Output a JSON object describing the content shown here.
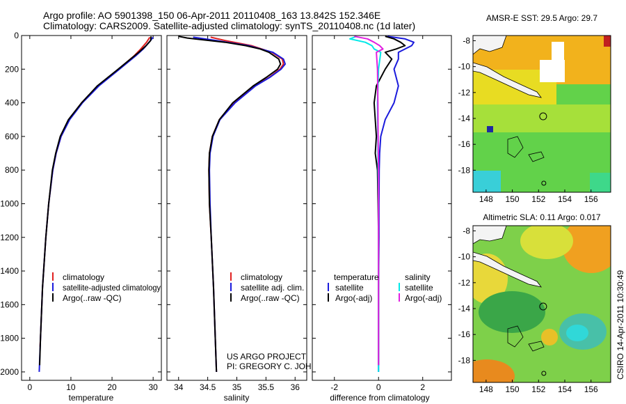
{
  "header": {
    "line1": "Argo profile: AO 5901398_150 06-Apr-2011 20110408_163 13.842S 152.346E",
    "line2": "Climatology: CARS2009. Satellite-adjusted climatology: synTS_20110408.nc (1d later)"
  },
  "colors": {
    "climatology": "#e02020",
    "satellite": "#1a1adc",
    "argo": "#000000",
    "sal_satellite": "#00e8e8",
    "sal_argo": "#e020e0"
  },
  "credit": {
    "line1": "US ARGO PROJECT",
    "line2": "PI: GREGORY C. JOHNSON"
  },
  "side_label": "CSIRO 14-Apr-2011 10:30:49",
  "chart_data": [
    {
      "id": "temperature",
      "type": "line",
      "xlabel": "temperature",
      "xlim": [
        -2,
        32
      ],
      "ylim": [
        0,
        2050
      ],
      "y_inverted": true,
      "xticks": [
        "0",
        "10",
        "20",
        "30"
      ],
      "xtick_values": [
        0,
        10,
        20,
        30
      ],
      "yticks": [
        "0",
        "200",
        "400",
        "600",
        "800",
        "1000",
        "1200",
        "1400",
        "1600",
        "1800",
        "2000"
      ],
      "ytick_values": [
        0,
        200,
        400,
        600,
        800,
        1000,
        1200,
        1400,
        1600,
        1800,
        2000
      ],
      "legend": [
        "climatology",
        "satellite-adjusted climatology",
        "Argo(..raw -QC)"
      ],
      "series": [
        {
          "name": "climatology",
          "color": "#e02020",
          "depth": [
            10,
            40,
            80,
            120,
            200,
            300,
            400,
            500,
            600,
            700,
            800,
            1000,
            1200,
            1500,
            1800,
            1850
          ],
          "values": [
            29.2,
            28.4,
            27.0,
            25.4,
            21.6,
            16.6,
            12.6,
            9.6,
            7.6,
            6.4,
            5.6,
            4.6,
            3.9,
            3.1,
            2.6,
            2.5
          ]
        },
        {
          "name": "satellite-adjusted climatology",
          "color": "#1a1adc",
          "depth": [
            10,
            40,
            80,
            120,
            200,
            300,
            400,
            500,
            600,
            700,
            800,
            1000,
            1200,
            1500,
            1800,
            2000
          ],
          "values": [
            30.0,
            29.0,
            27.6,
            25.8,
            21.8,
            16.8,
            12.8,
            9.7,
            7.6,
            6.4,
            5.6,
            4.6,
            3.9,
            3.1,
            2.6,
            2.3
          ]
        },
        {
          "name": "Argo(..raw -QC)",
          "color": "#000000",
          "depth": [
            5,
            30,
            60,
            100,
            150,
            200,
            300,
            400,
            500,
            600,
            700,
            800,
            1000,
            1200,
            1500,
            1800,
            1960
          ],
          "values": [
            29.5,
            29.4,
            28.3,
            26.5,
            24.0,
            21.5,
            16.4,
            12.6,
            9.4,
            7.4,
            6.3,
            5.5,
            4.6,
            3.9,
            3.1,
            2.6,
            2.4
          ]
        }
      ]
    },
    {
      "id": "salinity",
      "type": "line",
      "xlabel": "salinity",
      "xlim": [
        33.8,
        36.2
      ],
      "ylim": [
        0,
        2050
      ],
      "y_inverted": true,
      "xticks": [
        "34",
        "34.5",
        "35",
        "35.5",
        "36"
      ],
      "xtick_values": [
        34,
        34.5,
        35,
        35.5,
        36
      ],
      "legend": [
        "climatology",
        "satellite adj. clim.",
        "Argo(..raw -QC)"
      ],
      "series": [
        {
          "name": "climatology",
          "color": "#e02020",
          "depth": [
            10,
            30,
            60,
            100,
            140,
            170,
            200,
            250,
            300,
            400,
            500,
            600,
            700,
            800,
            1000,
            1200,
            1500,
            1800,
            2000
          ],
          "values": [
            34.55,
            34.8,
            35.25,
            35.6,
            35.78,
            35.8,
            35.74,
            35.55,
            35.3,
            34.95,
            34.7,
            34.58,
            34.53,
            34.52,
            34.53,
            34.56,
            34.6,
            34.63,
            34.65
          ]
        },
        {
          "name": "satellite adj. clim.",
          "color": "#1a1adc",
          "depth": [
            10,
            30,
            60,
            100,
            140,
            170,
            200,
            250,
            300,
            400,
            500,
            600,
            700,
            800,
            1000,
            1200,
            1500,
            1800,
            2000
          ],
          "values": [
            34.25,
            34.65,
            35.2,
            35.62,
            35.8,
            35.83,
            35.76,
            35.56,
            35.32,
            34.97,
            34.71,
            34.59,
            34.54,
            34.53,
            34.54,
            34.56,
            34.6,
            34.63,
            34.65
          ]
        },
        {
          "name": "Argo(..raw -QC)",
          "color": "#000000",
          "depth": [
            5,
            15,
            25,
            40,
            60,
            80,
            100,
            140,
            170,
            200,
            250,
            300,
            400,
            500,
            600,
            700,
            800,
            1000,
            1200,
            1500,
            1800,
            2000
          ],
          "values": [
            34.0,
            34.15,
            34.4,
            34.8,
            35.15,
            35.4,
            35.55,
            35.72,
            35.75,
            35.7,
            35.5,
            35.28,
            34.93,
            34.7,
            34.58,
            34.53,
            34.52,
            34.53,
            34.56,
            34.6,
            34.63,
            34.65
          ]
        }
      ]
    },
    {
      "id": "difference",
      "type": "line",
      "xlabel": "difference from climatology",
      "xlim": [
        -3,
        3.3
      ],
      "ylim": [
        0,
        2050
      ],
      "y_inverted": true,
      "xticks": [
        "-2",
        "0",
        "2"
      ],
      "xtick_values": [
        -2,
        0,
        2
      ],
      "legend_titles": [
        "temperature",
        "salinity"
      ],
      "legend": [
        "satellite",
        "Argo(-adj)",
        "satellite",
        "Argo(-adj)"
      ],
      "series": [
        {
          "name": "temperature satellite",
          "color": "#1a1adc",
          "depth": [
            5,
            20,
            40,
            60,
            100,
            140,
            200,
            300,
            400,
            500,
            600,
            700,
            800,
            1000,
            1200,
            1500,
            1800,
            2000
          ],
          "values": [
            0.4,
            1.2,
            1.6,
            1.5,
            0.9,
            0.9,
            0.7,
            0.9,
            0.7,
            0.3,
            0.1,
            0.05,
            0.03,
            0.02,
            0.02,
            0.0,
            0.0,
            0.0
          ]
        },
        {
          "name": "temperature Argo(-adj)",
          "color": "#000000",
          "depth": [
            5,
            20,
            40,
            60,
            80,
            100,
            140,
            200,
            300,
            400,
            500,
            600,
            700,
            800,
            1000,
            1200,
            1500,
            1800,
            1960
          ],
          "values": [
            0.3,
            0.7,
            1.0,
            1.2,
            0.8,
            0.3,
            0.6,
            0.3,
            -0.1,
            -0.2,
            -0.15,
            -0.1,
            -0.15,
            -0.05,
            -0.02,
            0.0,
            0.0,
            0.0,
            0.0
          ]
        },
        {
          "name": "salinity satellite",
          "color": "#00e8e8",
          "depth": [
            5,
            20,
            40,
            60,
            80,
            100,
            200,
            400,
            600,
            800,
            1000,
            1200,
            1500,
            1800,
            2000
          ],
          "values": [
            -1.0,
            -1.3,
            -0.6,
            -0.3,
            -0.2,
            0.1,
            0.0,
            -0.05,
            -0.03,
            -0.02,
            0.0,
            0.0,
            0.0,
            0.0,
            0.0
          ]
        },
        {
          "name": "salinity Argo(-adj)",
          "color": "#e020e0",
          "depth": [
            5,
            20,
            40,
            60,
            80,
            100,
            200,
            400,
            600,
            800,
            1000,
            1200,
            1500,
            1800,
            1960
          ],
          "values": [
            -1.1,
            -0.5,
            -0.2,
            0.05,
            0.2,
            -0.1,
            -0.05,
            -0.03,
            -0.02,
            0.0,
            0.0,
            0.0,
            0.0,
            0.0,
            0.0
          ]
        }
      ]
    },
    {
      "id": "sst_map",
      "type": "heatmap",
      "title": "AMSR-E SST: 29.5 Argo: 29.7",
      "xlim": [
        147,
        157.5
      ],
      "ylim": [
        -19.7,
        -7.6
      ],
      "xticks": [
        "148",
        "150",
        "152",
        "154",
        "156"
      ],
      "xtick_values": [
        148,
        150,
        152,
        154,
        156
      ],
      "yticks": [
        "-8",
        "-10",
        "-12",
        "-14",
        "-16",
        "-18"
      ],
      "ytick_values": [
        -8,
        -10,
        -12,
        -14,
        -16,
        -18
      ],
      "markers": [
        {
          "lon": 152.35,
          "lat": -13.84,
          "kind": "float"
        },
        {
          "lon": 152.4,
          "lat": -19.0,
          "kind": "small-circle"
        }
      ]
    },
    {
      "id": "sla_map",
      "type": "heatmap",
      "title": "Altimetric SLA: 0.11 Argo: 0.017",
      "xlim": [
        147,
        157.5
      ],
      "ylim": [
        -19.7,
        -7.6
      ],
      "xticks": [
        "148",
        "150",
        "152",
        "154",
        "156"
      ],
      "xtick_values": [
        148,
        150,
        152,
        154,
        156
      ],
      "yticks": [
        "-8",
        "-10",
        "-12",
        "-14",
        "-16",
        "-18"
      ],
      "ytick_values": [
        -8,
        -10,
        -12,
        -14,
        -16,
        -18
      ],
      "markers": [
        {
          "lon": 152.35,
          "lat": -13.84,
          "kind": "float"
        },
        {
          "lon": 152.4,
          "lat": -19.0,
          "kind": "small-circle"
        }
      ]
    }
  ]
}
